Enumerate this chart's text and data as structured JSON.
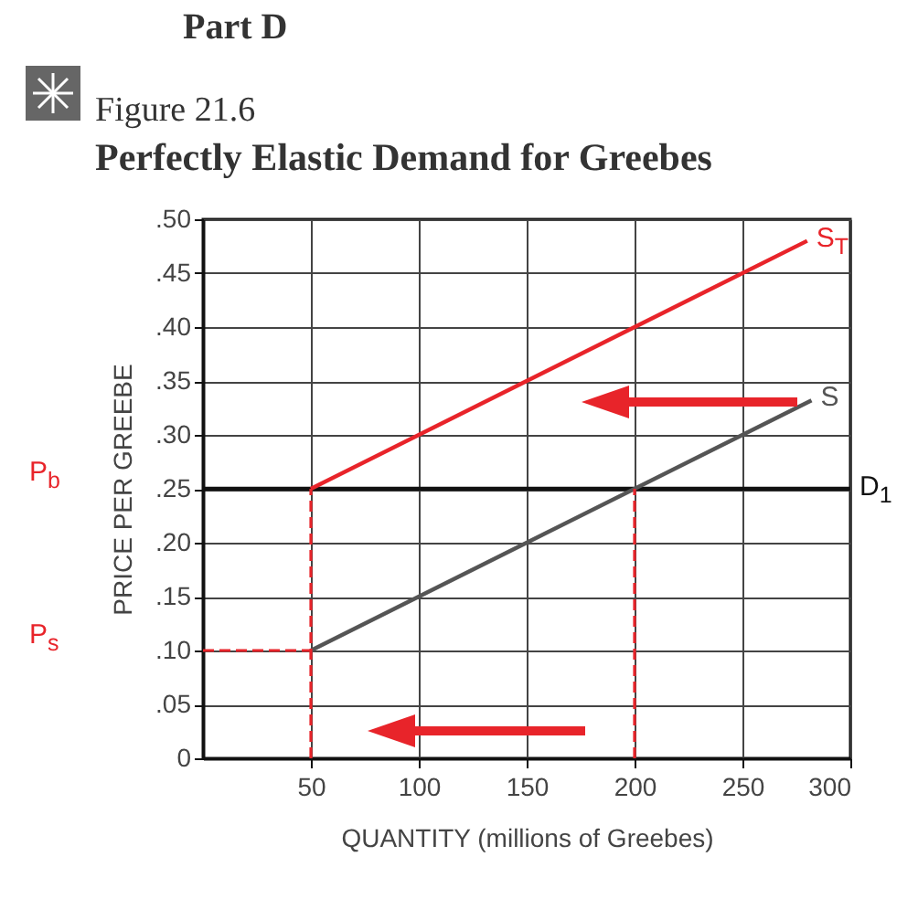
{
  "chart_data": {
    "type": "line",
    "title": "Perfectly Elastic Demand for Greebes",
    "subtitle": "Figure 21.6",
    "xlabel": "QUANTITY (millions of Greebes)",
    "ylabel": "PRICE PER GREEBE",
    "annotations": [
      "Part D",
      "P$_{b}$",
      "P$_{s}$"
    ],
    "xlim": [
      0,
      300
    ],
    "ylim": [
      0,
      0.5
    ],
    "xticks": [
      50,
      100,
      150,
      200,
      250,
      300
    ],
    "yticks": [
      0,
      {
        "value": 0.05,
        "label": ".05"
      },
      {
        "value": 0.1,
        "label": ".10"
      },
      {
        "value": 0.15,
        "label": ".15"
      },
      {
        "value": 0.2,
        "label": ".20"
      },
      {
        "value": 0.25,
        "label": ".25"
      },
      {
        "value": 0.3,
        "label": ".30"
      },
      {
        "value": 0.35,
        "label": ".35"
      },
      {
        "value": 0.4,
        "label": ".40"
      },
      {
        "value": 0.45,
        "label": ".45"
      },
      {
        "value": 0.5,
        "label": ".50"
      }
    ],
    "grid": true,
    "legend": false,
    "marker": "none",
    "series": [
      {
        "name": "D$_{1}$",
        "color": "#111111",
        "x": [
          0,
          300
        ],
        "values": [
          0.25,
          0.25
        ]
      },
      {
        "name": "S",
        "color": "#555555",
        "x": [
          50,
          282
        ],
        "values": [
          0.1,
          0.332
        ]
      },
      {
        "name": "S$_{T}$",
        "color": "#e8242a",
        "x": [
          50,
          280
        ],
        "values": [
          0.25,
          0.48
        ]
      },
      {
        "color": "#e8242a",
        "line_style": "dashed",
        "x": [
          50,
          50
        ],
        "values": [
          0,
          0.25
        ]
      },
      {
        "color": "#e8242a",
        "line_style": "dashed",
        "x": [
          0,
          50
        ],
        "values": [
          0.1,
          0.1
        ]
      },
      {
        "color": "#e8242a",
        "line_style": "dashed",
        "x": [
          200,
          200
        ],
        "values": [
          0,
          0.25
        ]
      }
    ]
  }
}
